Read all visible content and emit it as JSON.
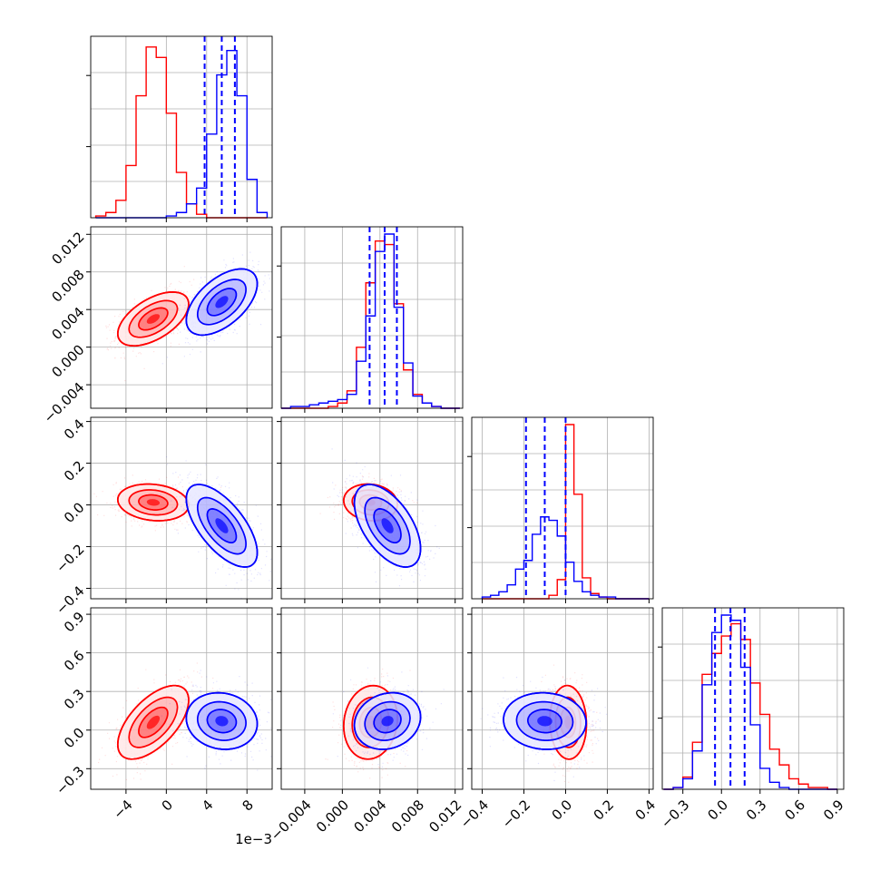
{
  "chart_data": {
    "type": "corner",
    "parameters": 4,
    "series": [
      {
        "color": "#ff0000",
        "means": [
          -0.0013,
          0.003,
          0.012,
          0.06
        ],
        "sds": [
          0.0016,
          0.0013,
          0.04,
          0.13
        ],
        "corr": [
          [
            1,
            0.55,
            -0.15,
            0.6
          ],
          [
            0.55,
            1,
            -0.1,
            0.1
          ],
          [
            -0.15,
            -0.1,
            1,
            -0.05
          ],
          [
            0.6,
            0.1,
            -0.05,
            1
          ]
        ]
      },
      {
        "color": "#0000ff",
        "means": [
          0.0055,
          0.0048,
          -0.1,
          0.07
        ],
        "sds": [
          0.0016,
          0.0016,
          0.09,
          0.1
        ],
        "corr": [
          [
            1,
            0.55,
            -0.65,
            -0.1
          ],
          [
            0.55,
            1,
            -0.55,
            0.15
          ],
          [
            -0.65,
            -0.55,
            1,
            -0.05
          ],
          [
            -0.1,
            0.15,
            -0.05,
            1
          ]
        ]
      }
    ],
    "quantile_lines": {
      "color": "#0000ff",
      "values": [
        [
          0.0038,
          0.0055,
          0.0068
        ],
        [
          0.0029,
          0.0045,
          0.0058
        ],
        [
          -0.19,
          -0.1,
          0.0
        ],
        [
          -0.05,
          0.07,
          0.18
        ]
      ]
    },
    "histograms": [
      {
        "bins": [
          -0.007,
          -0.006,
          -0.005,
          -0.004,
          -0.003,
          -0.002,
          -0.001,
          0.0,
          0.001,
          0.002,
          0.003,
          0.004,
          0.005,
          0.006,
          0.007,
          0.008,
          0.009,
          0.01
        ],
        "red": [
          0.01,
          0.03,
          0.1,
          0.3,
          0.7,
          0.98,
          0.92,
          0.6,
          0.26,
          0.08,
          0.02,
          0,
          0,
          0,
          0,
          0,
          0
        ],
        "blue": [
          0,
          0,
          0,
          0,
          0,
          0,
          0,
          0.01,
          0.03,
          0.08,
          0.17,
          0.48,
          0.82,
          0.96,
          0.7,
          0.22,
          0.03
        ]
      },
      {
        "bins": [
          -0.0065,
          -0.0055,
          -0.0045,
          -0.0035,
          -0.0025,
          -0.0015,
          -0.0005,
          0.0005,
          0.0015,
          0.0025,
          0.0035,
          0.0045,
          0.0055,
          0.0065,
          0.0075,
          0.0085,
          0.0095,
          0.0105,
          0.0115,
          0.0125
        ],
        "red": [
          0,
          0,
          0,
          0,
          0,
          0.01,
          0.03,
          0.1,
          0.35,
          0.72,
          0.96,
          0.94,
          0.6,
          0.22,
          0.08,
          0.03,
          0.01,
          0,
          0
        ],
        "blue": [
          0,
          0.01,
          0.01,
          0.02,
          0.03,
          0.04,
          0.05,
          0.08,
          0.27,
          0.53,
          0.9,
          1.0,
          0.58,
          0.26,
          0.07,
          0.03,
          0.01,
          0,
          0
        ]
      },
      {
        "bins": [
          -0.4,
          -0.36,
          -0.32,
          -0.28,
          -0.24,
          -0.2,
          -0.16,
          -0.12,
          -0.08,
          -0.04,
          0.0,
          0.04,
          0.08,
          0.12,
          0.16,
          0.2,
          0.24,
          0.28,
          0.32,
          0.36,
          0.4
        ],
        "red": [
          0,
          0,
          0,
          0,
          0,
          0,
          0,
          0,
          0.02,
          0.11,
          1.0,
          0.6,
          0.12,
          0.03,
          0.01,
          0,
          0,
          0,
          0,
          0
        ],
        "blue": [
          0.01,
          0.02,
          0.04,
          0.08,
          0.17,
          0.22,
          0.37,
          0.47,
          0.45,
          0.36,
          0.21,
          0.1,
          0.04,
          0.02,
          0.01,
          0.01,
          0,
          0,
          0,
          0
        ]
      },
      {
        "bins": [
          -0.45,
          -0.375,
          -0.3,
          -0.225,
          -0.15,
          -0.075,
          0.0,
          0.075,
          0.15,
          0.225,
          0.3,
          0.375,
          0.45,
          0.525,
          0.6,
          0.675,
          0.75,
          0.825,
          0.9,
          0.975
        ],
        "red": [
          0,
          0.01,
          0.07,
          0.27,
          0.66,
          0.78,
          0.88,
          0.95,
          0.86,
          0.61,
          0.43,
          0.23,
          0.14,
          0.06,
          0.03,
          0.01,
          0.01,
          0
        ],
        "blue": [
          0,
          0.01,
          0.06,
          0.22,
          0.6,
          0.9,
          1.0,
          0.97,
          0.7,
          0.37,
          0.12,
          0.04,
          0.01,
          0,
          0,
          0,
          0,
          0
        ]
      }
    ],
    "axes": [
      {
        "range": [
          -0.0075,
          0.0105
        ],
        "ticks": [
          -0.004,
          0.0,
          0.004,
          0.008
        ],
        "tick_labels": [
          "−4",
          "0",
          "4",
          "8"
        ],
        "offset_label": "1e−3"
      },
      {
        "range": [
          -0.0065,
          0.0128
        ],
        "ticks": [
          -0.004,
          0.0,
          0.004,
          0.008,
          0.012
        ],
        "tick_labels": [
          "−0.004",
          "0.000",
          "0.004",
          "0.008",
          "0.012"
        ]
      },
      {
        "range": [
          -0.45,
          0.42
        ],
        "ticks": [
          -0.4,
          -0.2,
          0.0,
          0.2,
          0.4
        ],
        "tick_labels": [
          "−0.4",
          "−0.2",
          "0.0",
          "0.2",
          "0.4"
        ]
      },
      {
        "range": [
          -0.46,
          0.95
        ],
        "ticks": [
          -0.3,
          0.0,
          0.3,
          0.6,
          0.9
        ],
        "tick_labels": [
          "−0.3",
          "0.0",
          "0.3",
          "0.6",
          "0.9"
        ]
      }
    ],
    "grid": true
  }
}
